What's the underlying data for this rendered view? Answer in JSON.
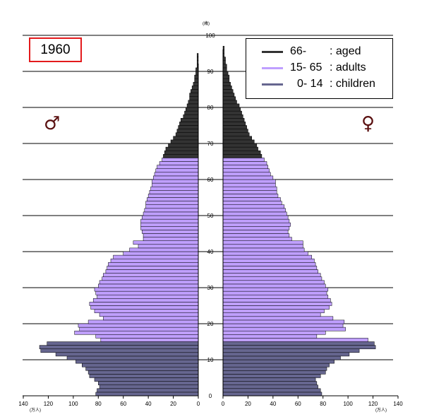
{
  "year": "1960",
  "symbols": {
    "male": "♂",
    "female": "♀"
  },
  "age_unit": "(歳)",
  "count_unit": "(万人)",
  "legend": [
    {
      "code": "66-",
      "label": ": aged",
      "color": "#333333"
    },
    {
      "code": "15- 65",
      "label": ": adults",
      "color": "#bf9fff"
    },
    {
      "code": "0- 14",
      "label": ": children",
      "color": "#66668f"
    }
  ],
  "chart_data": {
    "type": "bar",
    "orientation": "horizontal-pyramid",
    "y_ticks": [
      0,
      10,
      20,
      30,
      40,
      50,
      60,
      70,
      80,
      90,
      100
    ],
    "x_ticks_left": [
      140,
      120,
      100,
      80,
      60,
      40,
      20,
      0
    ],
    "x_ticks_right": [
      0,
      20,
      40,
      60,
      80,
      100,
      120,
      140
    ],
    "xlim": [
      0,
      140
    ],
    "ylim": [
      0,
      100
    ],
    "age_groups": [
      {
        "group": "children",
        "from": 0,
        "to": 14,
        "color": "#66668f"
      },
      {
        "group": "adults",
        "from": 15,
        "to": 65,
        "color": "#bf9fff"
      },
      {
        "group": "aged",
        "from": 66,
        "to": 100,
        "color": "#333333"
      }
    ],
    "series": [
      {
        "sex": "male",
        "values": [
          82,
          81,
          79,
          80,
          83,
          87,
          88,
          90,
          93,
          98,
          105,
          114,
          126,
          127,
          121,
          78,
          82,
          99,
          95,
          96,
          88,
          76,
          79,
          83,
          86,
          87,
          84,
          81,
          82,
          83,
          80,
          79,
          77,
          76,
          74,
          73,
          72,
          70,
          68,
          60,
          55,
          48,
          52,
          44,
          44,
          45,
          46,
          46,
          46,
          45,
          44,
          43,
          42,
          42,
          41,
          40,
          39,
          38,
          37,
          37,
          36,
          35,
          34,
          33,
          31,
          29,
          28,
          27,
          26,
          24,
          22,
          20,
          18,
          17,
          16,
          15,
          14,
          12,
          11,
          10,
          9,
          8,
          7,
          7,
          6,
          5,
          4,
          3,
          3,
          2,
          2,
          1,
          1,
          1,
          1,
          0,
          0,
          0,
          0,
          0
        ]
      },
      {
        "sex": "female",
        "values": [
          79,
          78,
          76,
          75,
          74,
          78,
          82,
          83,
          85,
          89,
          94,
          101,
          109,
          122,
          121,
          116,
          75,
          82,
          98,
          96,
          97,
          88,
          78,
          81,
          85,
          87,
          86,
          84,
          83,
          84,
          82,
          81,
          79,
          78,
          76,
          75,
          74,
          73,
          71,
          68,
          65,
          64,
          64,
          55,
          53,
          52,
          53,
          54,
          53,
          52,
          51,
          50,
          49,
          47,
          46,
          44,
          43,
          43,
          42,
          42,
          40,
          38,
          37,
          36,
          35,
          33,
          31,
          30,
          28,
          27,
          25,
          23,
          21,
          20,
          19,
          18,
          17,
          16,
          15,
          14,
          13,
          11,
          10,
          9,
          8,
          7,
          6,
          5,
          5,
          4,
          3,
          3,
          2,
          2,
          1,
          1,
          1,
          0,
          0,
          0
        ]
      }
    ]
  }
}
